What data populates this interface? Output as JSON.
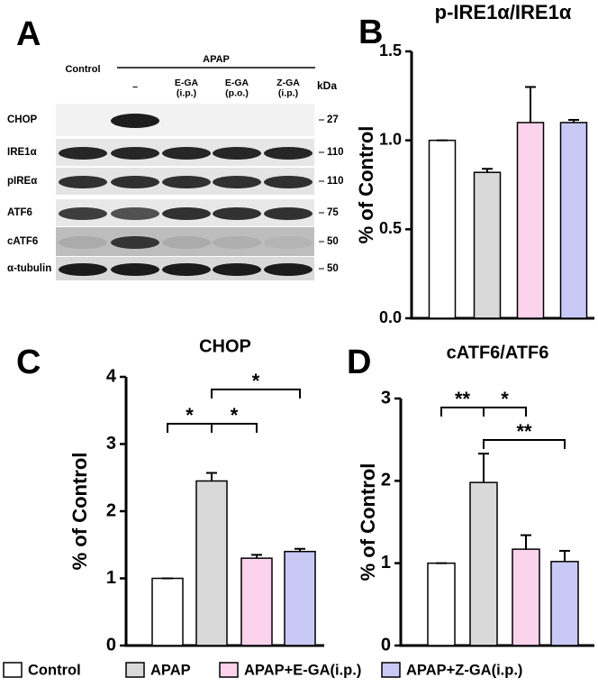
{
  "blot": {
    "panel": "A",
    "group_labels": [
      "Control",
      "APAP"
    ],
    "lanes": [
      "–",
      "E-GA\n(i.p.)",
      "E-GA\n(p.o.)",
      "Z-GA\n(i.p.)"
    ],
    "unit": "kDa",
    "rows": [
      {
        "name": "CHOP",
        "kda": "27"
      },
      {
        "name": "IRE1α",
        "kda": "110"
      },
      {
        "name": "pIREα",
        "kda": "110"
      },
      {
        "name": "ATF6",
        "kda": "75"
      },
      {
        "name": "cATF6",
        "kda": "50"
      },
      {
        "name": "α-tubulin",
        "kda": "50"
      }
    ]
  },
  "legend": [
    {
      "name": "Control",
      "color": "#ffffff"
    },
    {
      "name": "APAP",
      "color": "#d9d9d9"
    },
    {
      "name": "APAP+E-GA(i.p.)",
      "color": "#fbd3ec"
    },
    {
      "name": "APAP+Z-GA(i.p.)",
      "color": "#c9c9f6"
    }
  ],
  "chart_data": [
    {
      "type": "bar",
      "panel": "B",
      "title": "p-IRE1α/IRE1α",
      "y_label": "% of Control",
      "values": [
        1.0,
        0.82,
        1.1,
        1.1
      ],
      "errors": [
        0,
        0.02,
        0.2,
        0.015
      ],
      "ylim": [
        0,
        1.5
      ],
      "yticks": [
        {
          "value": 0,
          "label": "0.0"
        },
        0.5,
        {
          "value": 1,
          "label": "1.0"
        },
        1.5
      ],
      "significance": []
    },
    {
      "type": "bar",
      "panel": "C",
      "title": "CHOP",
      "y_label": "% of Control",
      "values": [
        1.0,
        2.45,
        1.3,
        1.4
      ],
      "errors": [
        0,
        0.12,
        0.05,
        0.04
      ],
      "ylim": [
        0,
        4
      ],
      "yticks": [
        0,
        1,
        2,
        3,
        4
      ],
      "significance": [
        {
          "from": 0,
          "to": 1,
          "label": "*"
        },
        {
          "from": 1,
          "to": 2,
          "label": "*"
        },
        {
          "from": 1,
          "to": 3,
          "label": "*"
        }
      ]
    },
    {
      "type": "bar",
      "panel": "D",
      "title": "cATF6/ATF6",
      "y_label": "% of Control",
      "values": [
        1.0,
        1.98,
        1.17,
        1.02
      ],
      "errors": [
        0,
        0.35,
        0.17,
        0.13
      ],
      "ylim": [
        0,
        3
      ],
      "yticks": [
        0,
        1,
        2,
        3
      ],
      "significance": [
        {
          "from": 0,
          "to": 1,
          "label": "**"
        },
        {
          "from": 1,
          "to": 2,
          "label": "*"
        },
        {
          "from": 1,
          "to": 3,
          "label": "**"
        }
      ]
    }
  ]
}
